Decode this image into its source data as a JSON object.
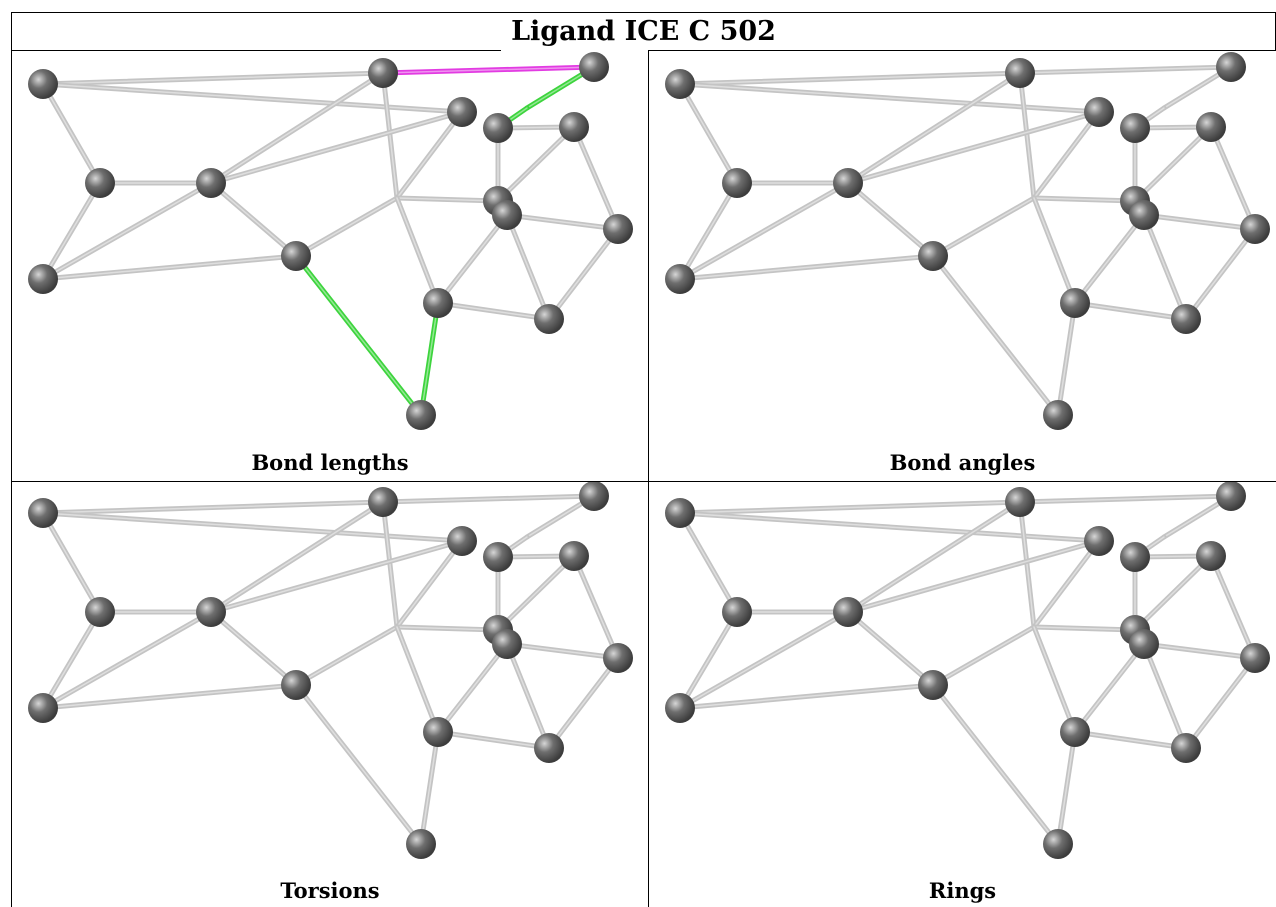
{
  "title": "Ligand ICE C 502",
  "panels": [
    {
      "label": "Bond lengths"
    },
    {
      "label": "Bond angles"
    },
    {
      "label": "Torsions"
    },
    {
      "label": "Rings"
    }
  ],
  "colors": {
    "bond": "#c4c4c4",
    "atom": "#6e6e6e",
    "highlight_magenta": "#e23be2",
    "highlight_green": "#3dd43d"
  }
}
